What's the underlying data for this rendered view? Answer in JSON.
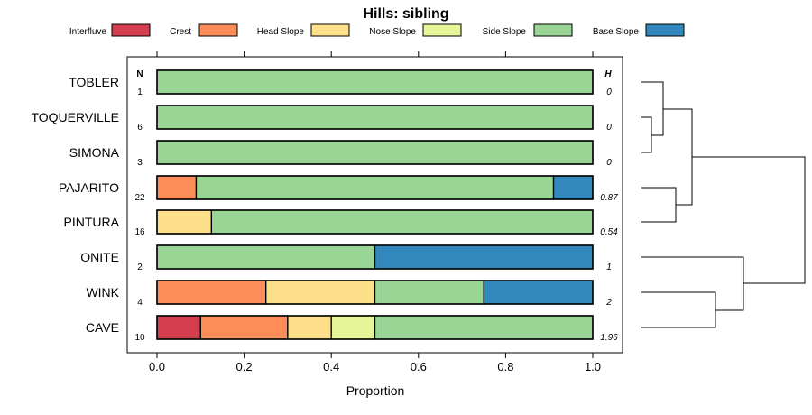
{
  "chart_data": {
    "type": "bar",
    "orientation": "horizontal",
    "stacked": true,
    "title": "Hills: sibling",
    "xlabel": "Proportion",
    "ylabel": "",
    "xlim": [
      0,
      1
    ],
    "x_ticks": [
      "0.0",
      "0.2",
      "0.4",
      "0.6",
      "0.8",
      "1.0"
    ],
    "n_header": "N",
    "h_header": "H",
    "legend": [
      {
        "label": "Interfluve",
        "color": "#d53e4f"
      },
      {
        "label": "Crest",
        "color": "#fc8d59"
      },
      {
        "label": "Head Slope",
        "color": "#fee08b"
      },
      {
        "label": "Nose Slope",
        "color": "#e6f598"
      },
      {
        "label": "Side Slope",
        "color": "#99d594"
      },
      {
        "label": "Base Slope",
        "color": "#3288bd"
      }
    ],
    "categories": [
      "TOBLER",
      "TOQUERVILLE",
      "SIMONA",
      "PAJARITO",
      "PINTURA",
      "ONITE",
      "WINK",
      "CAVE"
    ],
    "n": [
      "1",
      "6",
      "3",
      "22",
      "16",
      "2",
      "4",
      "10"
    ],
    "h": [
      "0",
      "0",
      "0",
      "0.87",
      "0.54",
      "1",
      "2",
      "1.96"
    ],
    "series": [
      {
        "name": "Interfluve",
        "values": [
          0,
          0,
          0,
          0,
          0,
          0,
          0,
          0.1
        ]
      },
      {
        "name": "Crest",
        "values": [
          0,
          0,
          0,
          0.09,
          0,
          0,
          0.25,
          0.2
        ]
      },
      {
        "name": "Head Slope",
        "values": [
          0,
          0,
          0,
          0,
          0.125,
          0,
          0.25,
          0.1
        ]
      },
      {
        "name": "Nose Slope",
        "values": [
          0,
          0,
          0,
          0,
          0,
          0,
          0,
          0.1
        ]
      },
      {
        "name": "Side Slope",
        "values": [
          1,
          1,
          1,
          0.82,
          0.875,
          0.5,
          0.25,
          0.5
        ]
      },
      {
        "name": "Base Slope",
        "values": [
          0,
          0,
          0,
          0.09,
          0,
          0.5,
          0.25,
          0
        ]
      }
    ],
    "dendrogram": "hierarchical clustering of the eight series (TOBLER/TOQUERVILLE/SIMONA/PAJARITO/PINTURA cluster vs ONITE/WINK/CAVE cluster)"
  }
}
